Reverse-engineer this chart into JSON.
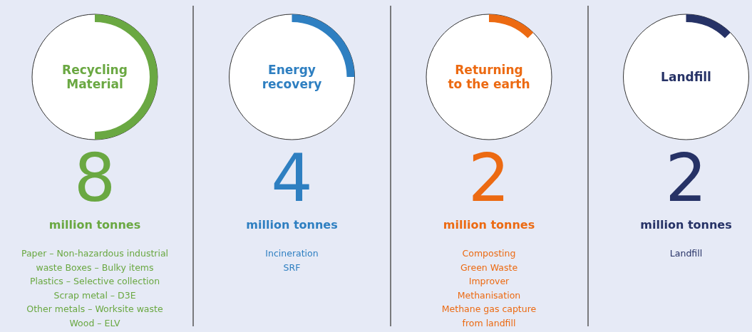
{
  "chart_data": [
    {
      "type": "other",
      "title": "Recycling Material",
      "values": [
        8
      ],
      "data_labels": true,
      "color": "#6aa842",
      "annotations": [
        "million tonnes",
        "Paper – Non-hazardous industrial",
        "waste Boxes – Bulky items",
        "Plastics – Selective collection",
        "Scrap metal – D3E",
        "Other metals – Worksite waste",
        "Wood – ELV"
      ]
    },
    {
      "type": "other",
      "title": "Energy recovery",
      "values": [
        4
      ],
      "data_labels": true,
      "color": "#2e7fc1",
      "annotations": [
        "million tonnes",
        "Incineration",
        "SRF"
      ]
    },
    {
      "type": "other",
      "title": "Returning to the earth",
      "values": [
        2
      ],
      "data_labels": true,
      "color": "#ec6a12",
      "annotations": [
        "million tonnes",
        "Composting",
        "Green Waste",
        "Improver",
        "Methanisation",
        "Methane gas capture",
        "from landfill"
      ]
    },
    {
      "type": "other",
      "title": "Landfill",
      "values": [
        2
      ],
      "data_labels": true,
      "color": "#263266",
      "annotations": [
        "million tonnes",
        "Landfill"
      ]
    }
  ]
}
